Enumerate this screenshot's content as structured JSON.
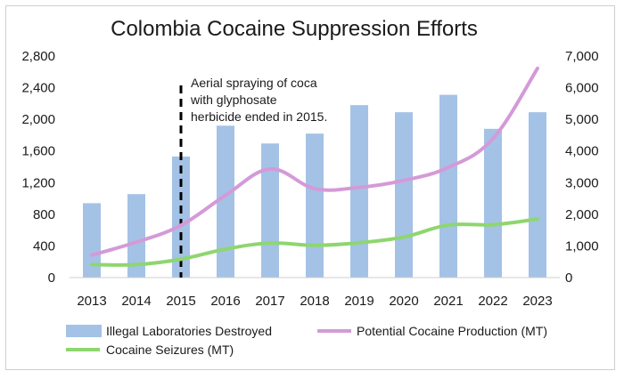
{
  "chart_data": {
    "type": "bar+line",
    "title": "Colombia Cocaine Suppression Efforts",
    "categories": [
      "2013",
      "2014",
      "2015",
      "2016",
      "2017",
      "2018",
      "2019",
      "2020",
      "2021",
      "2022",
      "2023"
    ],
    "left_axis": {
      "min": 0,
      "max": 2800,
      "step": 400,
      "tick_labels": [
        "0",
        "400",
        "800",
        "1,200",
        "1,600",
        "2,000",
        "2,400",
        "2,800"
      ]
    },
    "right_axis": {
      "min": 0,
      "max": 7000,
      "step": 1000,
      "tick_labels": [
        "0",
        "1,000",
        "2,000",
        "3,000",
        "4,000",
        "5,000",
        "6,000",
        "7,000"
      ]
    },
    "series": [
      {
        "name": "Illegal Laboratories Destroyed",
        "type": "bar",
        "axis": "left",
        "color": "#a4c2e6",
        "values": [
          940,
          1055,
          1530,
          1920,
          1695,
          1820,
          2180,
          2090,
          2310,
          1880,
          2090
        ]
      },
      {
        "name": "Potential Cocaine Production (MT)",
        "type": "line",
        "axis": "right",
        "color": "#d49ad8",
        "values": [
          710,
          1120,
          1650,
          2600,
          3430,
          2810,
          2850,
          3070,
          3480,
          4390,
          6610
        ]
      },
      {
        "name": "Cocaine Seizures (MT)",
        "type": "line",
        "axis": "right",
        "color": "#8ed66f",
        "values": [
          410,
          410,
          580,
          900,
          1090,
          1020,
          1100,
          1280,
          1660,
          1670,
          1850
        ]
      }
    ],
    "annotation": {
      "lines": [
        "Aerial spraying of coca",
        "with glyphosate",
        "herbicide ended in 2015."
      ],
      "at_category": "2015"
    },
    "grid": false,
    "legend_position": "bottom"
  }
}
